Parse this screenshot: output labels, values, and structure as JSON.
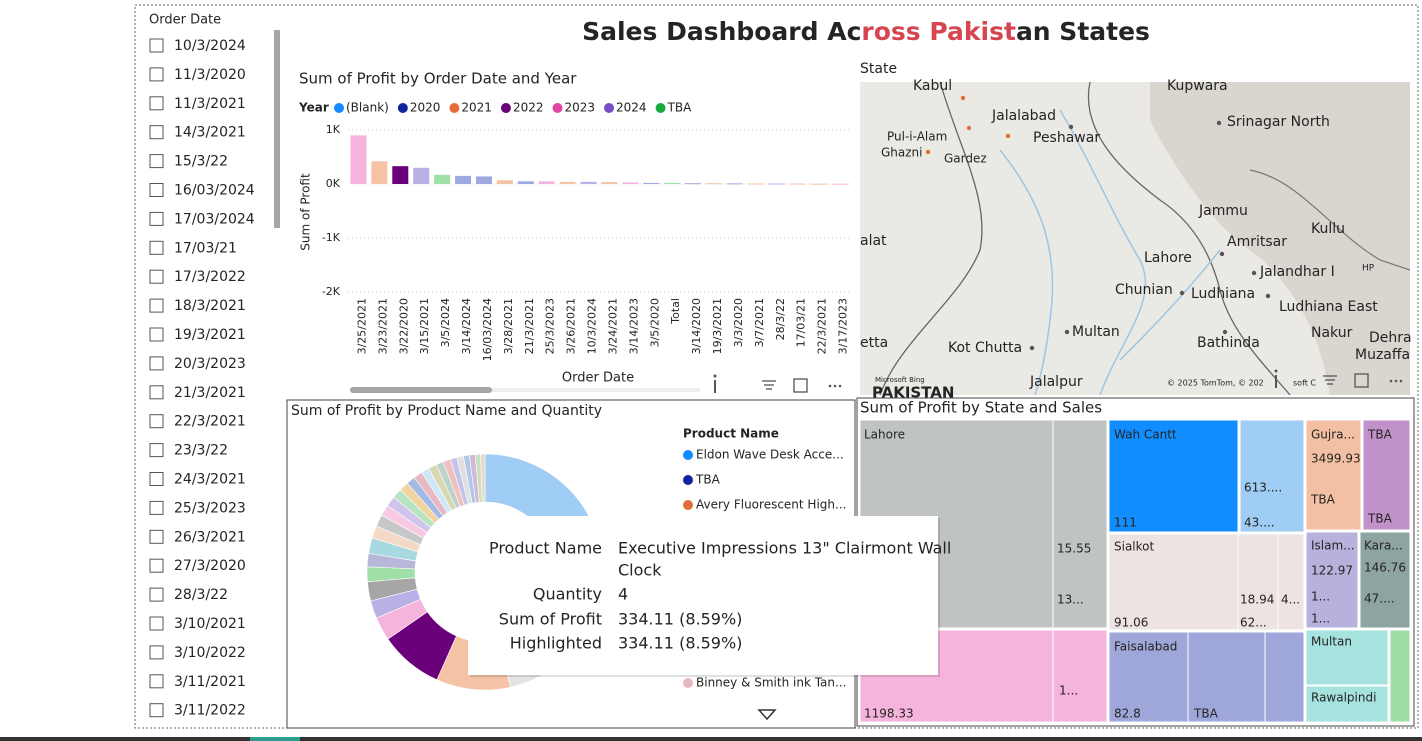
{
  "header": {
    "title_parts": [
      {
        "text": "Sales Dashboard Ac",
        "color": "#252423"
      },
      {
        "text": "ross Pakist",
        "color": "#d64550"
      },
      {
        "text": "an States",
        "color": "#252423"
      }
    ]
  },
  "slicer": {
    "title": "Order Date",
    "items": [
      "10/3/2024",
      "11/3/2020",
      "11/3/2021",
      "14/3/2021",
      "15/3/22",
      "16/03/2024",
      "17/03/2024",
      "17/03/21",
      "17/3/2022",
      "18/3/2021",
      "19/3/2021",
      "20/3/2023",
      "21/3/2021",
      "22/3/2021",
      "23/3/22",
      "24/3/2021",
      "25/3/2023",
      "26/3/2021",
      "27/3/2020",
      "28/3/22",
      "3/10/2021",
      "3/10/2022",
      "3/11/2021",
      "3/11/2022"
    ]
  },
  "chart_data": [
    {
      "type": "bar",
      "title": "Sum of Profit by Order Date and Year",
      "x_label": "Order Date",
      "y_label": "Sum of Profit",
      "legend": {
        "title": "Year",
        "items": [
          {
            "name": "(Blank)",
            "color": "#118dff"
          },
          {
            "name": "2020",
            "color": "#12239e"
          },
          {
            "name": "2021",
            "color": "#e66c37"
          },
          {
            "name": "2022",
            "color": "#6b007b"
          },
          {
            "name": "2023",
            "color": "#e044a7"
          },
          {
            "name": "2024",
            "color": "#744ec2"
          },
          {
            "name": "TBA",
            "color": "#1aab40"
          }
        ]
      },
      "categories": [
        "3/25/2021",
        "3/23/2021",
        "3/22/2020",
        "3/15/2021",
        "3/5/2024",
        "3/14/2024",
        "16/03/2024",
        "3/28/2021",
        "21/3/2021",
        "25/3/2023",
        "3/26/2021",
        "10/3/2024",
        "3/24/2021",
        "3/14/2023",
        "3/5/2020",
        "Total",
        "3/14/2020",
        "19/3/2021",
        "3/3/2020",
        "3/7/2021",
        "28/3/22",
        "17/03/21",
        "22/3/2021",
        "3/17/2023"
      ],
      "values": [
        900,
        420,
        330,
        300,
        170,
        150,
        140,
        70,
        50,
        50,
        40,
        40,
        35,
        30,
        20,
        20,
        15,
        15,
        12,
        10,
        10,
        8,
        6,
        5
      ],
      "colors": [
        "#f5b4dc",
        "#f4c2a5",
        "#6b007b",
        "#b9b0e6",
        "#9fe0a6",
        "#a0a8e0",
        "#a0a8e0",
        "#f4c2a5",
        "#a0a8e0",
        "#f5b4dc",
        "#f4c2a5",
        "#b9b0e6",
        "#f4c2a5",
        "#f5b4dc",
        "#a0a8e0",
        "#9fe0a6",
        "#a0a8e0",
        "#f4c2a5",
        "#a0a8e0",
        "#f4c2a5",
        "#b9b0e6",
        "#f4c2a5",
        "#f4c2a5",
        "#f5b4dc"
      ],
      "ylim": [
        -2000,
        1000
      ],
      "yticks": [
        {
          "value": 1000,
          "label": "1K"
        },
        {
          "value": 0,
          "label": "0K"
        },
        {
          "value": -1000,
          "label": "-1K"
        },
        {
          "value": -2000,
          "label": "-2K"
        }
      ],
      "grid": true
    },
    {
      "type": "donut",
      "title": "Sum of Profit by Product Name and Quantity",
      "legend": {
        "title": "Product Name",
        "items": [
          {
            "name": "Eldon Wave Desk Acce...",
            "color": "#118dff"
          },
          {
            "name": "TBA",
            "color": "#12239e"
          },
          {
            "name": "Avery Fluorescent High...",
            "color": "#e66c37"
          },
          {
            "name": "Binney & Smith ink Tan...",
            "color": "#e6b8c0"
          }
        ]
      },
      "values": [
        26,
        2,
        3,
        5,
        4,
        6,
        10,
        8.59,
        3.2,
        2.4,
        2.6,
        2,
        1.8,
        2.1,
        1.7,
        1.6,
        1.5,
        1.4,
        1.3,
        1.3,
        1.2,
        1.2,
        1.1,
        1.1,
        1,
        1,
        0.9,
        0.9,
        0.8,
        0.8,
        0.7,
        0.6
      ],
      "colors": [
        "#a0cdf5",
        "#d9d9d9",
        "#c9d4e8",
        "#e8e8e8",
        "#dcdcdc",
        "#e4e4e4",
        "#f4c2a5",
        "#6b007b",
        "#f5b4dc",
        "#b9b0e6",
        "#a6a6a6",
        "#9fe0a6",
        "#b7b7d9",
        "#a8d8e0",
        "#f3d9c6",
        "#c7c7c7",
        "#f7c9e3",
        "#d0c4ec",
        "#b6e3c0",
        "#f2d4a0",
        "#a3b9e6",
        "#e6b8c0",
        "#cfe8f7",
        "#d8d8b0",
        "#bcd2cc",
        "#f0c0c0",
        "#c4c4e8",
        "#e0e0e0",
        "#b0c8e8",
        "#d4b8d8",
        "#c8e0c0",
        "#e8d8c8"
      ]
    }
  ],
  "map": {
    "title": "State",
    "labels": [
      "Kabul",
      "Kupwara",
      "Jalalabad",
      "Srinagar North",
      "Peshawar",
      "Pul-i-Alam",
      "Ghazni",
      "Gardez",
      "Jammu",
      "alat",
      "Kullu",
      "Amritsar",
      "Lahore",
      "Jalandhar I",
      "HP",
      "Chunian",
      "Ludhiana",
      "Ludhiana East",
      "Nakur",
      "Dehra",
      "Multan",
      "etta",
      "Kot Chutta",
      "Bathinda",
      "Muzaffa",
      "Jalalpur",
      "PAKISTAN"
    ],
    "bing": "Microsoft Bing",
    "copyright": "© 2025 TomTom, © 202",
    "copyright_tail": "soft C"
  },
  "treemap": {
    "title": "Sum of Profit by State and Sales",
    "tiles": [
      {
        "color": "#bfc3c2",
        "labels": [
          "Lahore",
          "15.55",
          "13..."
        ]
      },
      {
        "color": "#f5b4dc",
        "labels": [
          "1198.33",
          "1..."
        ]
      },
      {
        "color": "#118dff",
        "labels": [
          "Wah Cantt",
          "111"
        ]
      },
      {
        "color": "#a0cdf5",
        "labels": [
          "613....",
          "43...."
        ]
      },
      {
        "color": "#eee3e3",
        "labels": [
          "Sialkot",
          "91.06",
          "18.94",
          "4...",
          "62..."
        ]
      },
      {
        "color": "#9ea6da",
        "labels": [
          "Faisalabad",
          "82.8",
          "TBA"
        ]
      },
      {
        "color": "#f3c0a4",
        "labels": [
          "Gujra...",
          "3499.93",
          "TBA"
        ]
      },
      {
        "color": "#c191c9",
        "labels": [
          "TBA",
          "TBA"
        ]
      },
      {
        "color": "#b8b1dc",
        "labels": [
          "Islam...",
          "122.97",
          "1...",
          "1..."
        ]
      },
      {
        "color": "#8ea4a0",
        "labels": [
          "Kara...",
          "146.76",
          "47...."
        ]
      },
      {
        "color": "#a6e3df",
        "labels": [
          "Multan"
        ]
      },
      {
        "color": "#a6e3df",
        "labels": [
          "Rawalpindi"
        ]
      },
      {
        "color": "#9fdfa5",
        "labels": []
      }
    ]
  },
  "tooltip": {
    "rows": [
      {
        "key": "Product Name",
        "value": "Executive Impressions 13\" Clairmont Wall",
        "value_cont": "Clock"
      },
      {
        "key": "Quantity",
        "value": "4"
      },
      {
        "key": "Sum of Profit",
        "value": "334.11 (8.59%)"
      },
      {
        "key": "Highlighted",
        "value": "334.11 (8.59%)"
      }
    ]
  }
}
